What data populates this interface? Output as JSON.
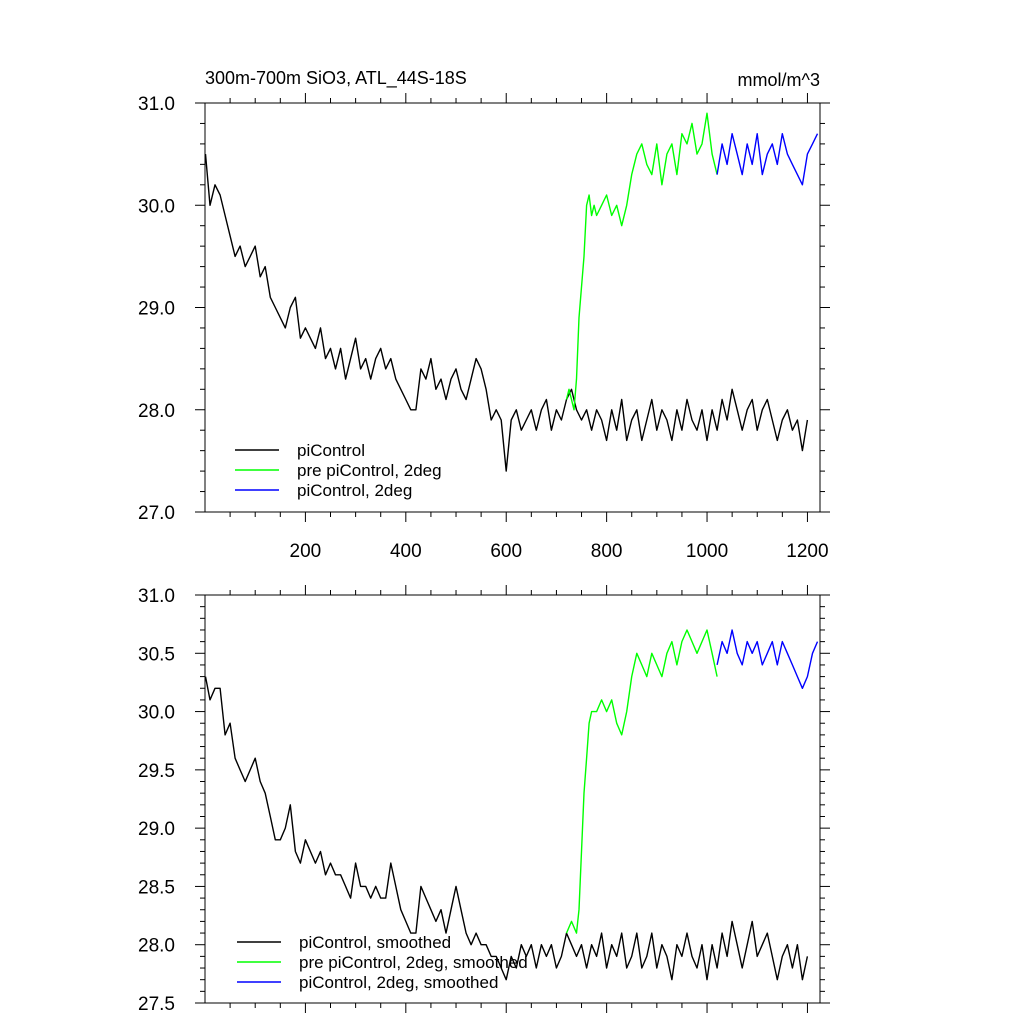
{
  "title_left": "300m-700m SiO3, ATL_44S-18S",
  "title_right": "mmol/m^3",
  "chart_data": [
    {
      "type": "line",
      "panel": "top",
      "xlim": [
        0,
        1225
      ],
      "ylim": [
        27.0,
        31.0
      ],
      "xticks": [
        200,
        400,
        600,
        800,
        1000,
        1200
      ],
      "xtick_labels": [
        "200",
        "400",
        "600",
        "800",
        "1000",
        "1200"
      ],
      "yticks": [
        27.0,
        28.0,
        29.0,
        30.0,
        31.0
      ],
      "ytick_labels": [
        "27.0",
        "28.0",
        "29.0",
        "30.0",
        "31.0"
      ],
      "legend_position": "bottom-left",
      "series": [
        {
          "name": "piControl",
          "color": "#000000",
          "x": [
            1,
            10,
            20,
            30,
            40,
            50,
            60,
            70,
            80,
            90,
            100,
            110,
            120,
            130,
            140,
            150,
            160,
            170,
            180,
            190,
            200,
            210,
            220,
            230,
            240,
            250,
            260,
            270,
            280,
            290,
            300,
            310,
            320,
            330,
            340,
            350,
            360,
            370,
            380,
            390,
            400,
            410,
            420,
            430,
            440,
            450,
            460,
            470,
            480,
            490,
            500,
            510,
            520,
            530,
            540,
            550,
            560,
            570,
            580,
            590,
            600,
            610,
            620,
            630,
            640,
            650,
            660,
            670,
            680,
            690,
            700,
            710,
            720,
            730,
            740,
            750,
            760,
            770,
            780,
            790,
            800,
            810,
            820,
            830,
            840,
            850,
            860,
            870,
            880,
            890,
            900,
            910,
            920,
            930,
            940,
            950,
            960,
            970,
            980,
            990,
            1000,
            1010,
            1020,
            1030,
            1040,
            1050,
            1060,
            1070,
            1080,
            1090,
            1100,
            1110,
            1120,
            1130,
            1140,
            1150,
            1160,
            1170,
            1180,
            1190,
            1200
          ],
          "y": [
            30.5,
            30.0,
            30.2,
            30.1,
            29.9,
            29.7,
            29.5,
            29.6,
            29.4,
            29.5,
            29.6,
            29.3,
            29.4,
            29.1,
            29.0,
            28.9,
            28.8,
            29.0,
            29.1,
            28.7,
            28.8,
            28.7,
            28.6,
            28.8,
            28.5,
            28.6,
            28.4,
            28.6,
            28.3,
            28.5,
            28.7,
            28.4,
            28.5,
            28.3,
            28.5,
            28.6,
            28.4,
            28.5,
            28.3,
            28.2,
            28.1,
            28.0,
            28.0,
            28.4,
            28.3,
            28.5,
            28.2,
            28.3,
            28.1,
            28.3,
            28.4,
            28.2,
            28.1,
            28.3,
            28.5,
            28.4,
            28.2,
            27.9,
            28.0,
            27.9,
            27.4,
            27.9,
            28.0,
            27.8,
            27.9,
            28.0,
            27.8,
            28.0,
            28.1,
            27.8,
            28.0,
            27.9,
            28.1,
            28.2,
            28.0,
            27.9,
            28.0,
            27.8,
            28.0,
            27.9,
            27.7,
            28.0,
            27.8,
            28.1,
            27.7,
            27.9,
            28.0,
            27.7,
            27.9,
            28.1,
            27.8,
            28.0,
            27.9,
            27.7,
            28.0,
            27.8,
            28.1,
            27.9,
            27.8,
            28.0,
            27.7,
            28.0,
            27.8,
            28.1,
            27.9,
            28.2,
            28.0,
            27.8,
            28.0,
            28.1,
            27.8,
            28.0,
            28.1,
            27.9,
            27.7,
            27.9,
            28.0,
            27.8,
            27.9,
            27.6,
            27.9
          ]
        },
        {
          "name": "pre piControl, 2deg",
          "color": "#00ff00",
          "x": [
            720,
            725,
            730,
            735,
            740,
            745,
            750,
            755,
            760,
            765,
            770,
            775,
            780,
            790,
            800,
            810,
            820,
            830,
            840,
            850,
            860,
            870,
            880,
            890,
            900,
            910,
            920,
            930,
            940,
            950,
            960,
            970,
            980,
            990,
            1000,
            1010,
            1020
          ],
          "y": [
            28.1,
            28.2,
            28.1,
            28.0,
            28.3,
            28.9,
            29.2,
            29.5,
            30.0,
            30.1,
            29.9,
            30.0,
            29.9,
            30.0,
            30.1,
            29.9,
            30.0,
            29.8,
            30.0,
            30.3,
            30.5,
            30.6,
            30.4,
            30.3,
            30.6,
            30.2,
            30.5,
            30.6,
            30.3,
            30.7,
            30.6,
            30.8,
            30.5,
            30.6,
            30.9,
            30.5,
            30.3
          ]
        },
        {
          "name": "piControl, 2deg",
          "color": "#0000ff",
          "x": [
            1020,
            1030,
            1040,
            1050,
            1060,
            1070,
            1080,
            1090,
            1100,
            1110,
            1120,
            1130,
            1140,
            1150,
            1160,
            1170,
            1180,
            1190,
            1200,
            1210,
            1220
          ],
          "y": [
            30.3,
            30.6,
            30.4,
            30.7,
            30.5,
            30.3,
            30.6,
            30.4,
            30.7,
            30.3,
            30.5,
            30.6,
            30.4,
            30.7,
            30.5,
            30.4,
            30.3,
            30.2,
            30.5,
            30.6,
            30.7
          ]
        }
      ]
    },
    {
      "type": "line",
      "panel": "bottom",
      "xlim": [
        0,
        1225
      ],
      "ylim": [
        27.5,
        31.0
      ],
      "xticks": [
        200,
        400,
        600,
        800,
        1000,
        1200
      ],
      "xtick_labels": [],
      "yticks": [
        27.5,
        28.0,
        28.5,
        29.0,
        29.5,
        30.0,
        30.5,
        31.0
      ],
      "ytick_labels": [
        "27.5",
        "28.0",
        "28.5",
        "29.0",
        "29.5",
        "30.0",
        "30.5",
        "31.0"
      ],
      "legend_position": "bottom-left",
      "series": [
        {
          "name": "piControl, smoothed",
          "color": "#000000",
          "x": [
            1,
            10,
            20,
            30,
            40,
            50,
            60,
            70,
            80,
            90,
            100,
            110,
            120,
            130,
            140,
            150,
            160,
            170,
            180,
            190,
            200,
            210,
            220,
            230,
            240,
            250,
            260,
            270,
            280,
            290,
            300,
            310,
            320,
            330,
            340,
            350,
            360,
            370,
            380,
            390,
            400,
            410,
            420,
            430,
            440,
            450,
            460,
            470,
            480,
            490,
            500,
            510,
            520,
            530,
            540,
            550,
            560,
            570,
            580,
            590,
            600,
            610,
            620,
            630,
            640,
            650,
            660,
            670,
            680,
            690,
            700,
            710,
            720,
            730,
            740,
            750,
            760,
            770,
            780,
            790,
            800,
            810,
            820,
            830,
            840,
            850,
            860,
            870,
            880,
            890,
            900,
            910,
            920,
            930,
            940,
            950,
            960,
            970,
            980,
            990,
            1000,
            1010,
            1020,
            1030,
            1040,
            1050,
            1060,
            1070,
            1080,
            1090,
            1100,
            1110,
            1120,
            1130,
            1140,
            1150,
            1160,
            1170,
            1180,
            1190,
            1200
          ],
          "y": [
            30.3,
            30.1,
            30.2,
            30.2,
            29.8,
            29.9,
            29.6,
            29.5,
            29.4,
            29.5,
            29.6,
            29.4,
            29.3,
            29.1,
            28.9,
            28.9,
            29.0,
            29.2,
            28.8,
            28.7,
            28.9,
            28.8,
            28.7,
            28.8,
            28.6,
            28.7,
            28.6,
            28.6,
            28.5,
            28.4,
            28.7,
            28.5,
            28.5,
            28.4,
            28.5,
            28.4,
            28.4,
            28.7,
            28.5,
            28.3,
            28.2,
            28.1,
            28.1,
            28.5,
            28.4,
            28.3,
            28.2,
            28.3,
            28.1,
            28.3,
            28.5,
            28.3,
            28.1,
            28.0,
            28.1,
            28.0,
            28.0,
            27.9,
            27.9,
            27.8,
            27.7,
            27.9,
            27.8,
            28.0,
            27.9,
            28.0,
            27.8,
            28.0,
            27.9,
            28.0,
            27.8,
            27.9,
            28.1,
            28.0,
            27.9,
            28.0,
            27.8,
            28.0,
            27.9,
            28.1,
            27.8,
            28.0,
            27.9,
            28.1,
            27.8,
            27.9,
            28.1,
            27.8,
            27.9,
            28.1,
            27.8,
            28.0,
            27.9,
            27.7,
            28.0,
            27.9,
            28.1,
            27.9,
            27.8,
            28.0,
            27.7,
            28.0,
            27.8,
            28.1,
            27.9,
            28.2,
            28.0,
            27.8,
            28.0,
            28.2,
            27.9,
            28.0,
            28.1,
            27.9,
            27.7,
            27.9,
            28.0,
            27.8,
            28.0,
            27.7,
            27.9
          ]
        },
        {
          "name": "pre piControl, 2deg, smoothed",
          "color": "#00ff00",
          "x": [
            720,
            730,
            740,
            745,
            750,
            755,
            760,
            765,
            770,
            780,
            790,
            800,
            810,
            820,
            830,
            840,
            850,
            860,
            870,
            880,
            890,
            900,
            910,
            920,
            930,
            940,
            950,
            960,
            970,
            980,
            990,
            1000,
            1010,
            1020
          ],
          "y": [
            28.1,
            28.2,
            28.1,
            28.3,
            28.8,
            29.3,
            29.6,
            29.9,
            30.0,
            30.0,
            30.1,
            30.0,
            30.1,
            29.9,
            29.8,
            30.0,
            30.3,
            30.5,
            30.4,
            30.3,
            30.5,
            30.4,
            30.3,
            30.5,
            30.6,
            30.4,
            30.6,
            30.7,
            30.6,
            30.5,
            30.6,
            30.7,
            30.5,
            30.3
          ]
        },
        {
          "name": "piControl, 2deg, smoothed",
          "color": "#0000ff",
          "x": [
            1020,
            1030,
            1040,
            1050,
            1060,
            1070,
            1080,
            1090,
            1100,
            1110,
            1120,
            1130,
            1140,
            1150,
            1160,
            1170,
            1180,
            1190,
            1200,
            1210,
            1220
          ],
          "y": [
            30.4,
            30.6,
            30.5,
            30.7,
            30.5,
            30.4,
            30.6,
            30.5,
            30.6,
            30.4,
            30.5,
            30.6,
            30.4,
            30.6,
            30.5,
            30.4,
            30.3,
            30.2,
            30.3,
            30.5,
            30.6
          ]
        }
      ]
    }
  ]
}
